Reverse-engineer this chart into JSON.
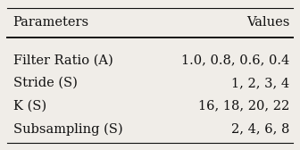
{
  "title_left": "Parameters",
  "title_right": "Values",
  "rows": [
    [
      "Filter Ratio (A)",
      "1.0, 0.8, 0.6, 0.4"
    ],
    [
      "Stride (S)",
      "1, 2, 3, 4"
    ],
    [
      "K (S)",
      "16, 18, 20, 22"
    ],
    [
      "Subsampling (S)",
      "2, 4, 6, 8"
    ]
  ],
  "background_color": "#f0ede8",
  "header_line_color": "#111111",
  "text_color": "#111111",
  "font_size": 10.5,
  "header_font_size": 10.5
}
